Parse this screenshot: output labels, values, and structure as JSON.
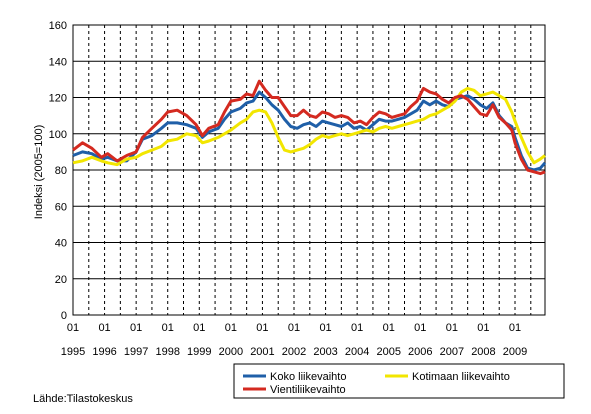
{
  "chart_data": {
    "type": "line",
    "ylabel": "Indeksi (2005=100)",
    "ylim": [
      0,
      160
    ],
    "yticks": [
      "0",
      "20",
      "40",
      "60",
      "80",
      "100",
      "120",
      "140",
      "160"
    ],
    "x_month_label": "01",
    "years": [
      "1995",
      "1996",
      "1997",
      "1998",
      "1999",
      "2000",
      "2001",
      "2002",
      "2003",
      "2004",
      "2005",
      "2006",
      "2007",
      "2008",
      "2009"
    ],
    "x_range": [
      1995.0,
      2009.95
    ],
    "grid": "horizontal solid, vertical dashed",
    "legend_position": "bottom-right",
    "source": "Lähde:Tilastokeskus",
    "series": [
      {
        "name": "Koko liikevaihto",
        "color": "#1f5fa8",
        "points": [
          [
            1995.0,
            88
          ],
          [
            1995.3,
            90
          ],
          [
            1995.6,
            89
          ],
          [
            1995.9,
            86
          ],
          [
            1996.1,
            87
          ],
          [
            1996.4,
            85
          ],
          [
            1996.7,
            85
          ],
          [
            1997.0,
            90
          ],
          [
            1997.2,
            97
          ],
          [
            1997.5,
            99
          ],
          [
            1997.8,
            103
          ],
          [
            1998.0,
            106
          ],
          [
            1998.3,
            106
          ],
          [
            1998.6,
            105
          ],
          [
            1998.9,
            103
          ],
          [
            1999.1,
            98
          ],
          [
            1999.3,
            101
          ],
          [
            1999.6,
            103
          ],
          [
            1999.8,
            108
          ],
          [
            2000.0,
            112
          ],
          [
            2000.3,
            114
          ],
          [
            2000.5,
            117
          ],
          [
            2000.7,
            118
          ],
          [
            2000.9,
            123
          ],
          [
            2001.1,
            120
          ],
          [
            2001.3,
            116
          ],
          [
            2001.5,
            113
          ],
          [
            2001.7,
            108
          ],
          [
            2001.9,
            104
          ],
          [
            2002.1,
            103
          ],
          [
            2002.3,
            105
          ],
          [
            2002.5,
            106
          ],
          [
            2002.7,
            104
          ],
          [
            2002.9,
            107
          ],
          [
            2003.1,
            106
          ],
          [
            2003.3,
            105
          ],
          [
            2003.5,
            104
          ],
          [
            2003.7,
            106
          ],
          [
            2003.9,
            103
          ],
          [
            2004.1,
            104
          ],
          [
            2004.3,
            102
          ],
          [
            2004.5,
            105
          ],
          [
            2004.7,
            108
          ],
          [
            2004.9,
            107
          ],
          [
            2005.1,
            107
          ],
          [
            2005.3,
            108
          ],
          [
            2005.5,
            109
          ],
          [
            2005.7,
            111
          ],
          [
            2005.9,
            113
          ],
          [
            2006.1,
            118
          ],
          [
            2006.3,
            116
          ],
          [
            2006.5,
            118
          ],
          [
            2006.7,
            116
          ],
          [
            2006.9,
            115
          ],
          [
            2007.1,
            119
          ],
          [
            2007.3,
            120
          ],
          [
            2007.5,
            121
          ],
          [
            2007.7,
            119
          ],
          [
            2007.9,
            116
          ],
          [
            2008.1,
            114
          ],
          [
            2008.3,
            117
          ],
          [
            2008.5,
            110
          ],
          [
            2008.7,
            106
          ],
          [
            2008.9,
            104
          ],
          [
            2009.0,
            98
          ],
          [
            2009.2,
            88
          ],
          [
            2009.4,
            81
          ],
          [
            2009.6,
            80
          ],
          [
            2009.8,
            81
          ],
          [
            2009.95,
            84
          ]
        ]
      },
      {
        "name": "Kotimaan liikevaihto",
        "color": "#f2e600",
        "points": [
          [
            1995.0,
            84
          ],
          [
            1995.3,
            85
          ],
          [
            1995.6,
            87
          ],
          [
            1995.9,
            85
          ],
          [
            1996.1,
            84
          ],
          [
            1996.4,
            83
          ],
          [
            1996.7,
            86
          ],
          [
            1997.0,
            87
          ],
          [
            1997.2,
            89
          ],
          [
            1997.5,
            91
          ],
          [
            1997.8,
            93
          ],
          [
            1998.0,
            96
          ],
          [
            1998.3,
            97
          ],
          [
            1998.6,
            100
          ],
          [
            1998.9,
            99
          ],
          [
            1999.1,
            95
          ],
          [
            1999.3,
            96
          ],
          [
            1999.6,
            98
          ],
          [
            1999.8,
            100
          ],
          [
            2000.0,
            102
          ],
          [
            2000.3,
            106
          ],
          [
            2000.5,
            108
          ],
          [
            2000.7,
            112
          ],
          [
            2000.9,
            113
          ],
          [
            2001.1,
            112
          ],
          [
            2001.3,
            106
          ],
          [
            2001.5,
            98
          ],
          [
            2001.7,
            91
          ],
          [
            2001.9,
            90
          ],
          [
            2002.1,
            91
          ],
          [
            2002.3,
            92
          ],
          [
            2002.5,
            94
          ],
          [
            2002.7,
            97
          ],
          [
            2002.9,
            99
          ],
          [
            2003.1,
            98
          ],
          [
            2003.3,
            99
          ],
          [
            2003.5,
            100
          ],
          [
            2003.7,
            99
          ],
          [
            2003.9,
            100
          ],
          [
            2004.1,
            101
          ],
          [
            2004.3,
            102
          ],
          [
            2004.5,
            101
          ],
          [
            2004.7,
            103
          ],
          [
            2004.9,
            104
          ],
          [
            2005.1,
            103
          ],
          [
            2005.3,
            104
          ],
          [
            2005.5,
            105
          ],
          [
            2005.7,
            106
          ],
          [
            2005.9,
            107
          ],
          [
            2006.1,
            108
          ],
          [
            2006.3,
            110
          ],
          [
            2006.5,
            111
          ],
          [
            2006.7,
            113
          ],
          [
            2006.9,
            115
          ],
          [
            2007.1,
            118
          ],
          [
            2007.3,
            123
          ],
          [
            2007.5,
            125
          ],
          [
            2007.7,
            124
          ],
          [
            2007.9,
            121
          ],
          [
            2008.1,
            122
          ],
          [
            2008.3,
            123
          ],
          [
            2008.5,
            121
          ],
          [
            2008.7,
            119
          ],
          [
            2008.9,
            112
          ],
          [
            2009.0,
            107
          ],
          [
            2009.2,
            98
          ],
          [
            2009.4,
            90
          ],
          [
            2009.6,
            84
          ],
          [
            2009.8,
            86
          ],
          [
            2009.95,
            88
          ]
        ]
      },
      {
        "name": "Vientiliikevaihto",
        "color": "#d42a20",
        "points": [
          [
            1995.0,
            91
          ],
          [
            1995.3,
            95
          ],
          [
            1995.6,
            92
          ],
          [
            1995.9,
            87
          ],
          [
            1996.1,
            89
          ],
          [
            1996.4,
            85
          ],
          [
            1996.7,
            88
          ],
          [
            1997.0,
            90
          ],
          [
            1997.2,
            98
          ],
          [
            1997.5,
            103
          ],
          [
            1997.8,
            108
          ],
          [
            1998.0,
            112
          ],
          [
            1998.3,
            113
          ],
          [
            1998.6,
            110
          ],
          [
            1998.9,
            105
          ],
          [
            1999.1,
            99
          ],
          [
            1999.3,
            103
          ],
          [
            1999.6,
            105
          ],
          [
            1999.8,
            112
          ],
          [
            2000.0,
            118
          ],
          [
            2000.3,
            119
          ],
          [
            2000.5,
            122
          ],
          [
            2000.7,
            121
          ],
          [
            2000.9,
            129
          ],
          [
            2001.1,
            124
          ],
          [
            2001.3,
            120
          ],
          [
            2001.5,
            120
          ],
          [
            2001.7,
            115
          ],
          [
            2001.9,
            110
          ],
          [
            2002.1,
            110
          ],
          [
            2002.3,
            113
          ],
          [
            2002.5,
            110
          ],
          [
            2002.7,
            109
          ],
          [
            2002.9,
            112
          ],
          [
            2003.1,
            111
          ],
          [
            2003.3,
            109
          ],
          [
            2003.5,
            110
          ],
          [
            2003.7,
            109
          ],
          [
            2003.9,
            106
          ],
          [
            2004.1,
            107
          ],
          [
            2004.3,
            105
          ],
          [
            2004.5,
            109
          ],
          [
            2004.7,
            112
          ],
          [
            2004.9,
            111
          ],
          [
            2005.1,
            109
          ],
          [
            2005.3,
            110
          ],
          [
            2005.5,
            111
          ],
          [
            2005.7,
            115
          ],
          [
            2005.9,
            118
          ],
          [
            2006.1,
            125
          ],
          [
            2006.3,
            123
          ],
          [
            2006.5,
            122
          ],
          [
            2006.7,
            119
          ],
          [
            2006.9,
            117
          ],
          [
            2007.1,
            120
          ],
          [
            2007.3,
            121
          ],
          [
            2007.5,
            119
          ],
          [
            2007.7,
            115
          ],
          [
            2007.9,
            111
          ],
          [
            2008.1,
            110
          ],
          [
            2008.3,
            116
          ],
          [
            2008.5,
            109
          ],
          [
            2008.7,
            106
          ],
          [
            2008.9,
            102
          ],
          [
            2009.0,
            95
          ],
          [
            2009.2,
            86
          ],
          [
            2009.4,
            80
          ],
          [
            2009.6,
            79
          ],
          [
            2009.8,
            78
          ],
          [
            2009.95,
            79
          ]
        ]
      }
    ],
    "legend": [
      {
        "name": "Koko liikevaihto",
        "color": "#1f5fa8"
      },
      {
        "name": "Kotimaan liikevaihto",
        "color": "#f2e600"
      },
      {
        "name": "Vientiliikevaihto",
        "color": "#d42a20"
      }
    ]
  }
}
